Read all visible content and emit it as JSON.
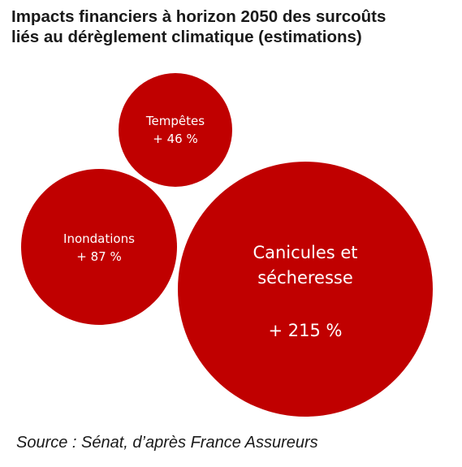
{
  "chart_data": {
    "type": "bubble",
    "title_lines": [
      "Impacts financiers à horizon 2050 des surcoûts",
      "liés au dérèglement climatique (estimations)"
    ],
    "series": [
      {
        "label_lines": [
          "Tempêtes"
        ],
        "value_label": "+ 46 %",
        "value": 46
      },
      {
        "label_lines": [
          "Inondations"
        ],
        "value_label": "+ 87 %",
        "value": 87
      },
      {
        "label_lines": [
          "Canicules et",
          "sécheresse"
        ],
        "value_label": "+ 215 %",
        "value": 215
      }
    ],
    "bubble_color": "#c00000",
    "source": "Source : Sénat, d’après France Assureurs"
  }
}
